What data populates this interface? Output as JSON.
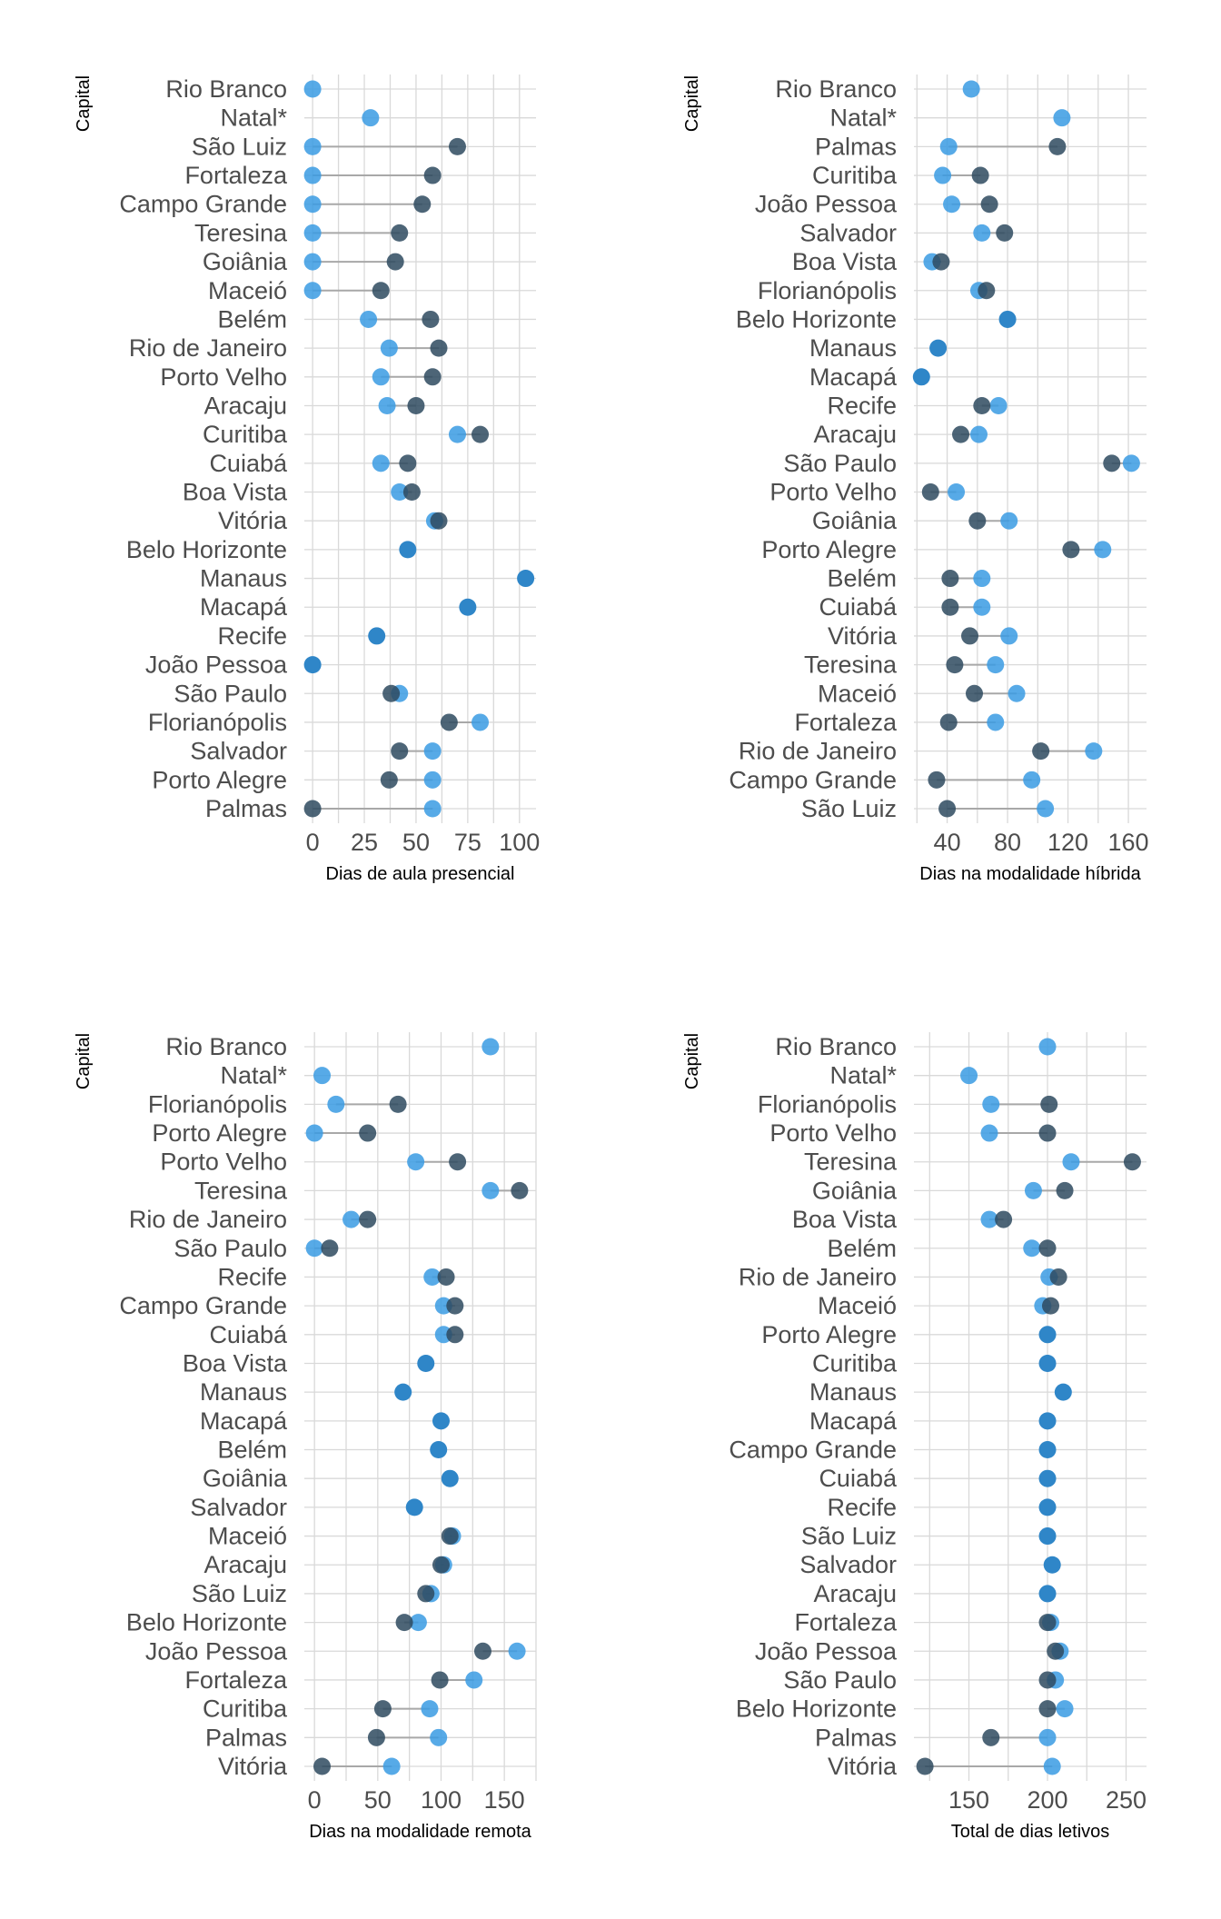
{
  "colors": {
    "start": "#2e4a5f",
    "end": "#3a9be3",
    "overlap": "#2f86c8",
    "segment": "#a8a8a8",
    "grid": "#d9d9d9"
  },
  "chart_data": [
    {
      "type": "dumbbell",
      "ylabel": "Capital",
      "xlabel": "Dias de aula presencial",
      "xticks": [
        0,
        25,
        50,
        75,
        100
      ],
      "xlim": [
        -4,
        108
      ],
      "categories": [
        "Rio Branco",
        "Natal*",
        "São Luiz",
        "Fortaleza",
        "Campo Grande",
        "Teresina",
        "Goiânia",
        "Maceió",
        "Belém",
        "Rio de Janeiro",
        "Porto Velho",
        "Aracaju",
        "Curitiba",
        "Cuiabá",
        "Boa Vista",
        "Vitória",
        "Belo Horizonte",
        "Manaus",
        "Macapá",
        "Recife",
        "João Pessoa",
        "São Paulo",
        "Florianópolis",
        "Salvador",
        "Porto Alegre",
        "Palmas"
      ],
      "series": [
        {
          "values": [
            null,
            null,
            70,
            58,
            53,
            42,
            40,
            33,
            57,
            61,
            58,
            50,
            81,
            46,
            48,
            61,
            46,
            103,
            75,
            31,
            0,
            38,
            66,
            42,
            37,
            0
          ]
        },
        {
          "values": [
            0,
            28,
            0,
            0,
            0,
            0,
            0,
            0,
            27,
            37,
            33,
            36,
            70,
            33,
            42,
            59,
            46,
            103,
            75,
            31,
            0,
            42,
            81,
            58,
            58,
            58
          ]
        }
      ]
    },
    {
      "type": "dumbbell",
      "ylabel": "Capital",
      "xlabel": "Dias na modalidade híbrida",
      "xticks": [
        40,
        80,
        120,
        160
      ],
      "xlim": [
        18,
        172
      ],
      "categories": [
        "Rio Branco",
        "Natal*",
        "Palmas",
        "Curitiba",
        "João Pessoa",
        "Salvador",
        "Boa Vista",
        "Florianópolis",
        "Belo Horizonte",
        "Manaus",
        "Macapá",
        "Recife",
        "Aracaju",
        "São Paulo",
        "Porto Velho",
        "Goiânia",
        "Porto Alegre",
        "Belém",
        "Cuiabá",
        "Vitória",
        "Teresina",
        "Maceió",
        "Fortaleza",
        "Rio de Janeiro",
        "Campo Grande",
        "São Luiz"
      ],
      "series": [
        {
          "values": [
            null,
            null,
            113,
            62,
            68,
            78,
            36,
            66,
            80,
            34,
            23,
            63,
            49,
            149,
            29,
            60,
            122,
            42,
            42,
            55,
            45,
            58,
            41,
            102,
            33,
            40
          ]
        },
        {
          "values": [
            56,
            116,
            41,
            37,
            43,
            63,
            30,
            61,
            80,
            34,
            23,
            74,
            61,
            162,
            46,
            81,
            143,
            63,
            63,
            81,
            72,
            86,
            72,
            137,
            96,
            105
          ]
        }
      ]
    },
    {
      "type": "dumbbell",
      "ylabel": "Capital",
      "xlabel": "Dias na modalidade remota",
      "xticks": [
        0,
        50,
        100,
        150
      ],
      "xlim": [
        -8,
        175
      ],
      "categories": [
        "Rio Branco",
        "Natal*",
        "Florianópolis",
        "Porto Alegre",
        "Porto Velho",
        "Teresina",
        "Rio de Janeiro",
        "São Paulo",
        "Recife",
        "Campo Grande",
        "Cuiabá",
        "Boa Vista",
        "Manaus",
        "Macapá",
        "Belém",
        "Goiânia",
        "Salvador",
        "Maceió",
        "Aracaju",
        "São Luiz",
        "Belo Horizonte",
        "João Pessoa",
        "Fortaleza",
        "Curitiba",
        "Palmas",
        "Vitória"
      ],
      "series": [
        {
          "values": [
            null,
            null,
            66,
            42,
            113,
            162,
            42,
            12,
            104,
            111,
            111,
            88,
            70,
            100,
            98,
            107,
            79,
            107,
            100,
            88,
            71,
            133,
            99,
            54,
            49,
            6
          ]
        },
        {
          "values": [
            139,
            6,
            17,
            0,
            80,
            139,
            29,
            0,
            93,
            102,
            102,
            88,
            70,
            100,
            98,
            107,
            79,
            109,
            102,
            92,
            82,
            160,
            126,
            91,
            98,
            61
          ]
        }
      ]
    },
    {
      "type": "dumbbell",
      "ylabel": "Capital",
      "xlabel": "Total de dias letivos",
      "xticks": [
        150,
        200,
        250
      ],
      "xlim": [
        115,
        263
      ],
      "categories": [
        "Rio Branco",
        "Natal*",
        "Florianópolis",
        "Porto Velho",
        "Teresina",
        "Goiânia",
        "Boa Vista",
        "Belém",
        "Rio de Janeiro",
        "Maceió",
        "Porto Alegre",
        "Curitiba",
        "Manaus",
        "Macapá",
        "Campo Grande",
        "Cuiabá",
        "Recife",
        "São Luiz",
        "Salvador",
        "Aracaju",
        "Fortaleza",
        "João Pessoa",
        "São Paulo",
        "Belo Horizonte",
        "Palmas",
        "Vitória"
      ],
      "series": [
        {
          "values": [
            null,
            null,
            201,
            200,
            254,
            211,
            172,
            200,
            207,
            202,
            200,
            200,
            210,
            200,
            200,
            200,
            200,
            200,
            203,
            200,
            200,
            205,
            200,
            200,
            164,
            122
          ]
        },
        {
          "values": [
            200,
            150,
            164,
            163,
            215,
            191,
            163,
            190,
            201,
            197,
            200,
            200,
            210,
            200,
            200,
            200,
            200,
            200,
            203,
            200,
            202,
            208,
            205,
            211,
            200,
            203
          ]
        }
      ]
    }
  ]
}
